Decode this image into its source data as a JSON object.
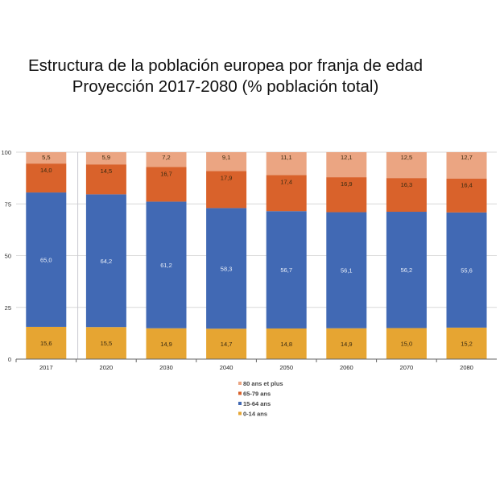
{
  "chart_data": {
    "type": "bar",
    "stacked": true,
    "title": "Estructura de la población europea por franja de edad",
    "subtitle": "Proyección 2017-2080 (% población total)",
    "xlabel": "",
    "ylabel": "",
    "ylim": [
      0,
      100
    ],
    "yticks": [
      "0",
      "25",
      "50",
      "75",
      "100"
    ],
    "grid": true,
    "legend_position": "bottom",
    "categories": [
      "2017",
      "2020",
      "2030",
      "2040",
      "2050",
      "2060",
      "2070",
      "2080"
    ],
    "series": [
      {
        "name": "0-14 ans",
        "color": "#E6A532",
        "values": [
          15.6,
          15.5,
          14.9,
          14.7,
          14.8,
          14.9,
          15.0,
          15.2
        ],
        "labels": [
          "15,6",
          "15,5",
          "14,9",
          "14,7",
          "14,8",
          "14,9",
          "15,0",
          "15,2"
        ]
      },
      {
        "name": "15-64 ans",
        "color": "#4169B4",
        "values": [
          65.0,
          64.2,
          61.2,
          58.3,
          56.7,
          56.1,
          56.2,
          55.6
        ],
        "labels": [
          "65,0",
          "64,2",
          "61,2",
          "58,3",
          "56,7",
          "56,1",
          "56,2",
          "55,6"
        ]
      },
      {
        "name": "65-79 ans",
        "color": "#D9622B",
        "values": [
          14.0,
          14.5,
          16.7,
          17.9,
          17.4,
          16.9,
          16.3,
          16.4
        ],
        "labels": [
          "14,0",
          "14,5",
          "16,7",
          "17,9",
          "17,4",
          "16,9",
          "16,3",
          "16,4"
        ]
      },
      {
        "name": "80 ans et plus",
        "color": "#EBA582",
        "values": [
          5.5,
          5.9,
          7.2,
          9.1,
          11.1,
          12.1,
          12.5,
          12.7
        ],
        "labels": [
          "5,5",
          "5,9",
          "7,2",
          "9,1",
          "11,1",
          "12,1",
          "12,5",
          "12,7"
        ]
      }
    ]
  }
}
